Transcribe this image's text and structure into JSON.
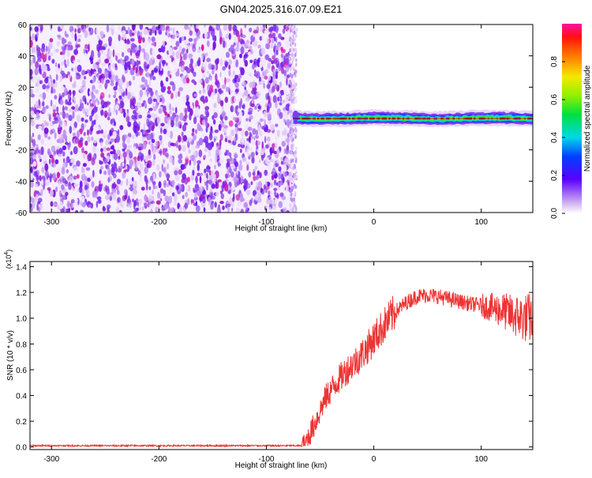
{
  "title": "GN04.2025.316.07.09.E21",
  "chart_data": [
    {
      "type": "heatmap",
      "xlabel": "Height of straight line (km)",
      "ylabel": "Frequency (Hz)",
      "xlim": [
        -320,
        148
      ],
      "ylim": [
        -60,
        60
      ],
      "x_ticks": [
        -300,
        -200,
        -100,
        0,
        100
      ],
      "y_ticks": [
        -60,
        -40,
        -20,
        0,
        20,
        40,
        60
      ],
      "noise_region_x": [
        -320,
        -75
      ],
      "signal_start_x": -75,
      "signal_frequency": 0,
      "colorbar": {
        "label": "Normalized spectral amplitude",
        "range": [
          0.0,
          1.0
        ],
        "ticks": [
          "0.0",
          "0.2",
          "0.4",
          "0.6",
          "0.8"
        ],
        "tick_values": [
          0.0,
          0.2,
          0.4,
          0.6,
          0.8
        ]
      }
    },
    {
      "type": "line",
      "xlabel": "Height of straight line (km)",
      "ylabel": "SNR (10 * v/v)",
      "exponent_label": "(x10",
      "exponent_sup": "4",
      "exponent_close": ")",
      "xlim": [
        -320,
        148
      ],
      "ylim": [
        -0.02,
        1.44
      ],
      "x_ticks": [
        -300,
        -200,
        -100,
        0,
        100
      ],
      "y_ticks": [
        "0.0",
        "0.2",
        "0.4",
        "0.6",
        "0.8",
        "1.0",
        "1.2",
        "1.4"
      ],
      "y_tick_values": [
        0.0,
        0.2,
        0.4,
        0.6,
        0.8,
        1.0,
        1.2,
        1.4
      ],
      "series": [
        {
          "color": "#ee3333",
          "envelope_x": [
            -320,
            -65,
            -55,
            -45,
            -35,
            -25,
            -15,
            -5,
            0,
            10,
            20,
            30,
            40,
            50,
            60,
            70,
            80,
            90,
            100,
            110,
            120,
            130,
            140,
            148
          ],
          "envelope_y": [
            0.01,
            0.01,
            0.18,
            0.38,
            0.5,
            0.6,
            0.68,
            0.78,
            0.84,
            0.95,
            1.05,
            1.12,
            1.17,
            1.18,
            1.17,
            1.15,
            1.13,
            1.11,
            1.1,
            1.08,
            1.06,
            1.02,
            1.0,
            1.0
          ]
        }
      ]
    }
  ]
}
